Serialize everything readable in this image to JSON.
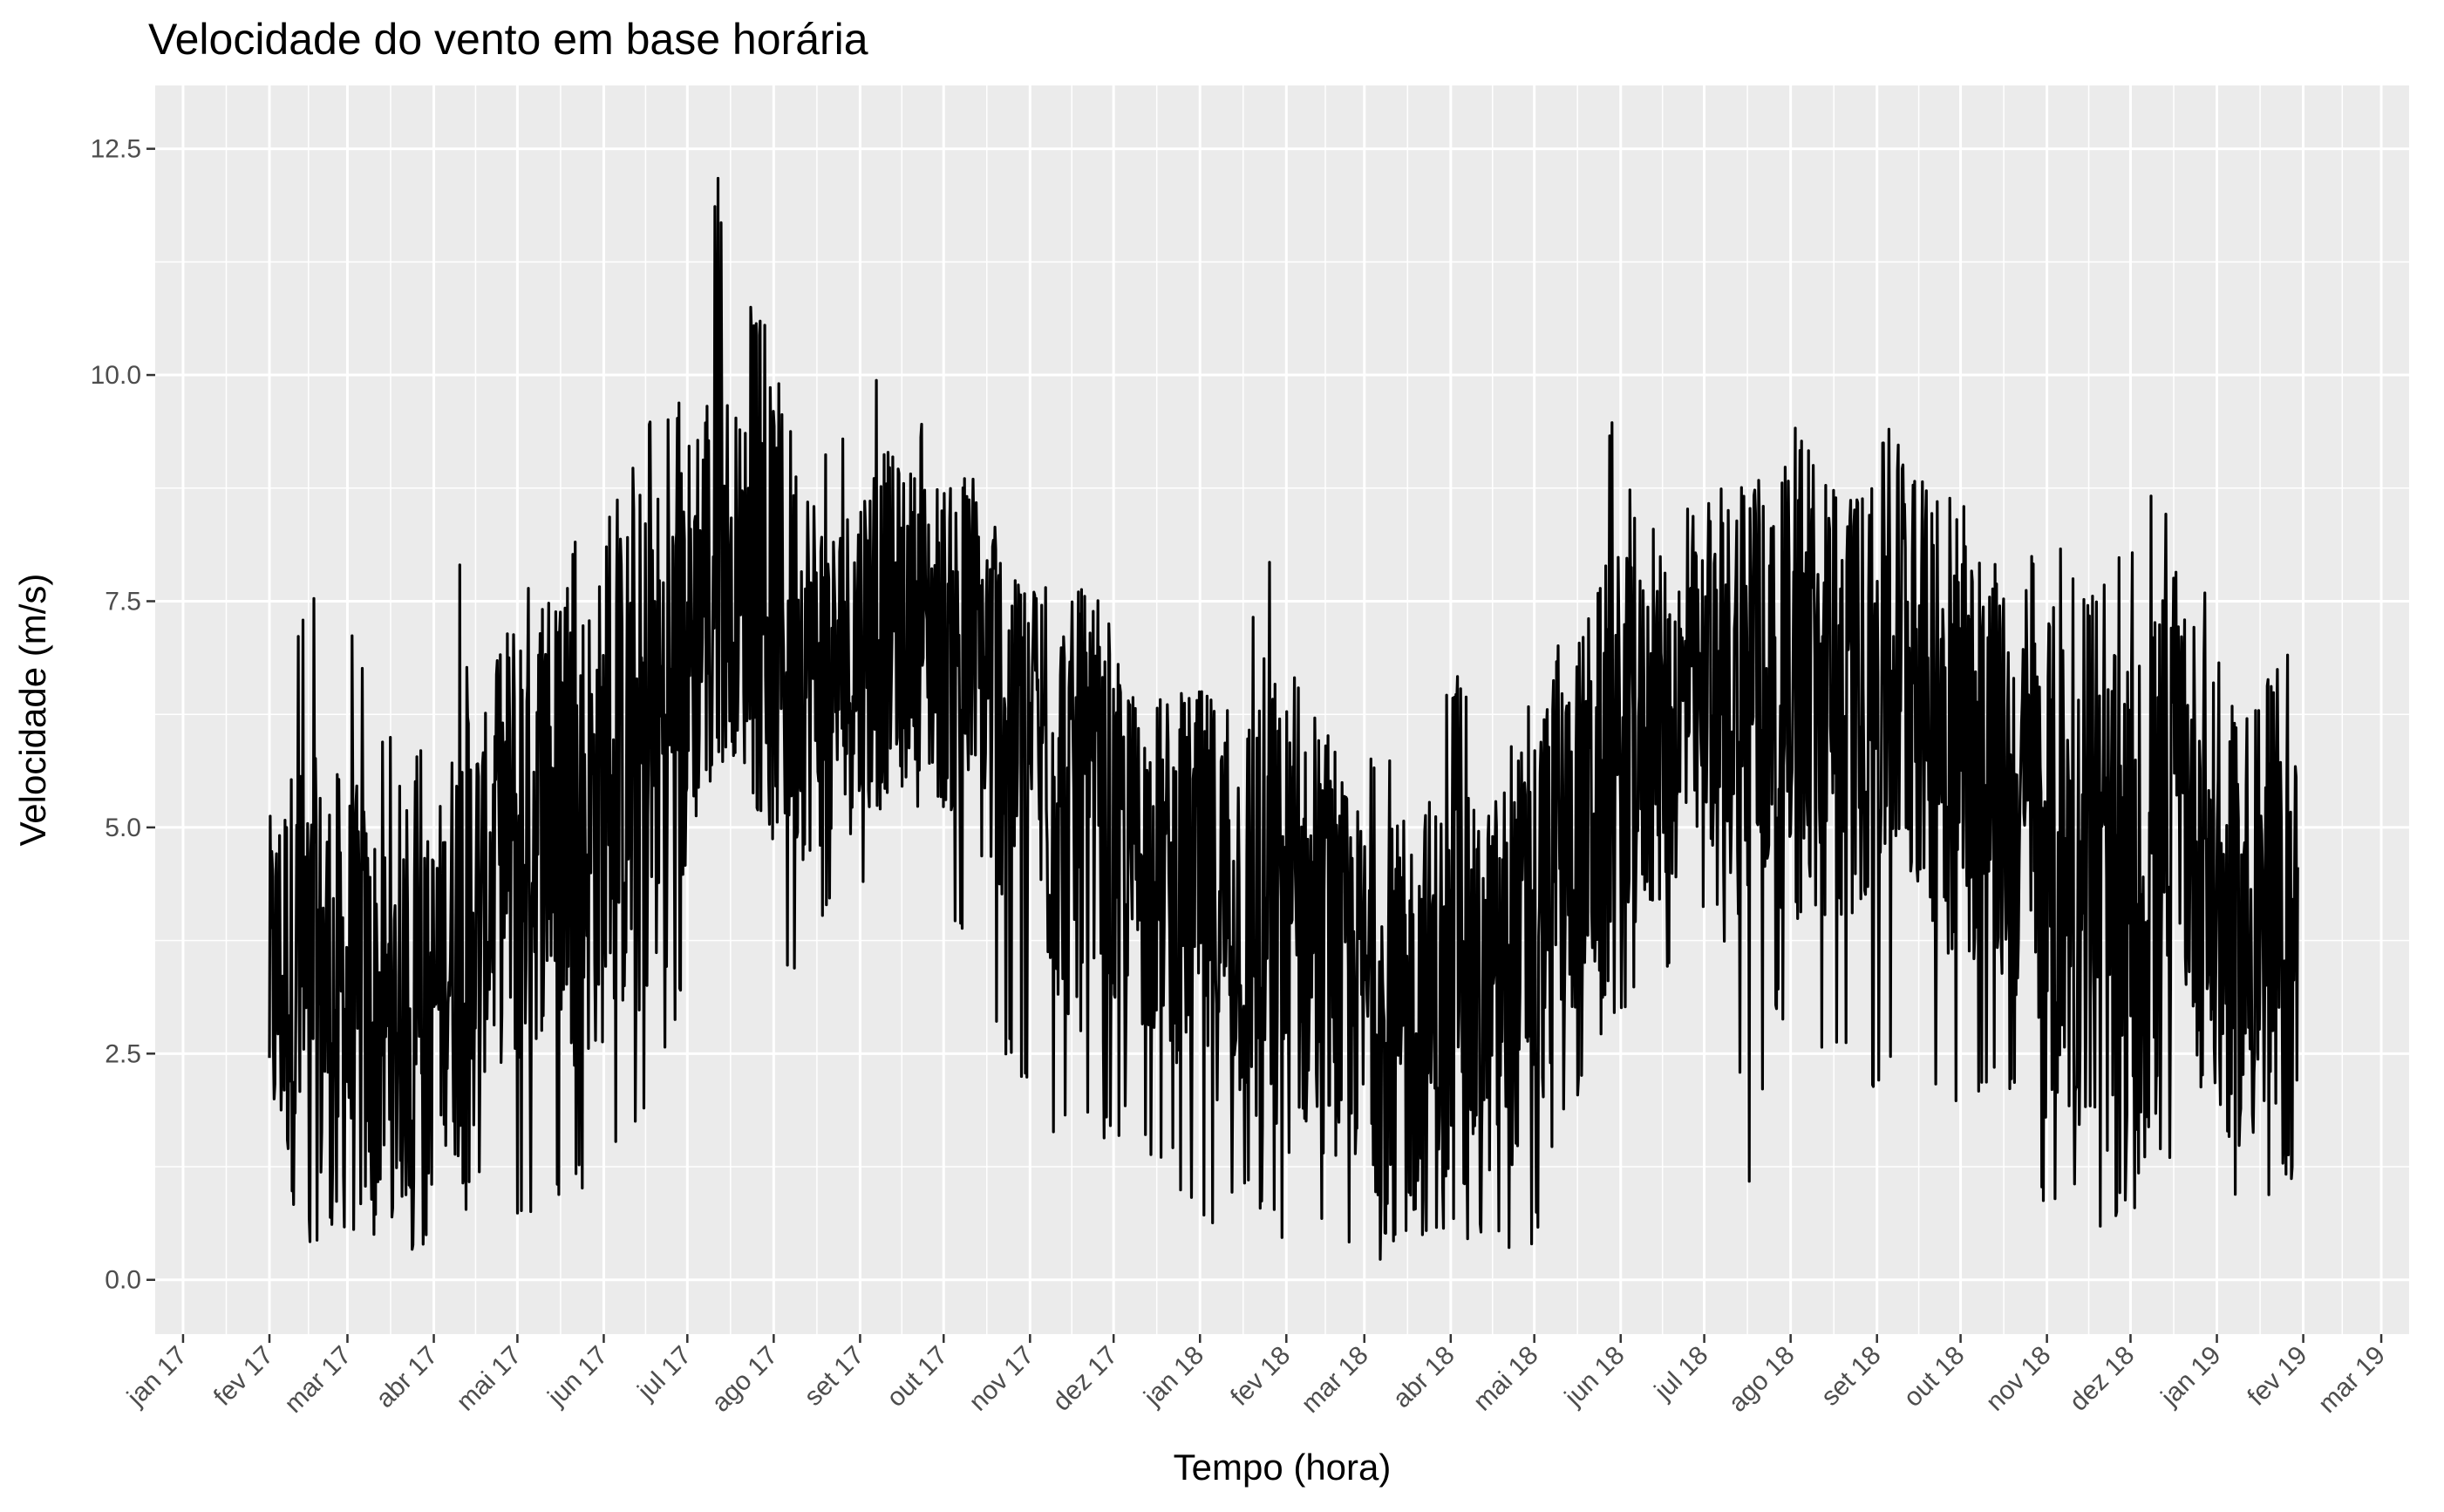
{
  "chart_data": {
    "type": "line",
    "title": "Velocidade do vento em base horária",
    "xlabel": "Tempo (hora)",
    "ylabel": "Velocidade (m/s)",
    "x_range": [
      "2016-12-22",
      "2019-03-11"
    ],
    "ylim": [
      -0.6,
      13.2
    ],
    "grid": true,
    "legend": "none",
    "line_color": "#000000",
    "background": "#ebebeb",
    "y_ticks": [
      {
        "value": 0.0,
        "label": "0.0"
      },
      {
        "value": 2.5,
        "label": "2.5"
      },
      {
        "value": 5.0,
        "label": "5.0"
      },
      {
        "value": 7.5,
        "label": "7.5"
      },
      {
        "value": 10.0,
        "label": "10.0"
      },
      {
        "value": 12.5,
        "label": "12.5"
      }
    ],
    "x_ticks": [
      {
        "date": "2017-01-01",
        "label": "jan 17"
      },
      {
        "date": "2017-02-01",
        "label": "fev 17"
      },
      {
        "date": "2017-03-01",
        "label": "mar 17"
      },
      {
        "date": "2017-04-01",
        "label": "abr 17"
      },
      {
        "date": "2017-05-01",
        "label": "mai 17"
      },
      {
        "date": "2017-06-01",
        "label": "jun 17"
      },
      {
        "date": "2017-07-01",
        "label": "jul 17"
      },
      {
        "date": "2017-08-01",
        "label": "ago 17"
      },
      {
        "date": "2017-09-01",
        "label": "set 17"
      },
      {
        "date": "2017-10-01",
        "label": "out 17"
      },
      {
        "date": "2017-11-01",
        "label": "nov 17"
      },
      {
        "date": "2017-12-01",
        "label": "dez 17"
      },
      {
        "date": "2018-01-01",
        "label": "jan 18"
      },
      {
        "date": "2018-02-01",
        "label": "fev 18"
      },
      {
        "date": "2018-03-01",
        "label": "mar 18"
      },
      {
        "date": "2018-04-01",
        "label": "abr 18"
      },
      {
        "date": "2018-05-01",
        "label": "mai 18"
      },
      {
        "date": "2018-06-01",
        "label": "jun 18"
      },
      {
        "date": "2018-07-01",
        "label": "jul 18"
      },
      {
        "date": "2018-08-01",
        "label": "ago 18"
      },
      {
        "date": "2018-09-01",
        "label": "set 18"
      },
      {
        "date": "2018-10-01",
        "label": "out 18"
      },
      {
        "date": "2018-11-01",
        "label": "nov 18"
      },
      {
        "date": "2018-12-01",
        "label": "dez 18"
      },
      {
        "date": "2019-01-01",
        "label": "jan 19"
      },
      {
        "date": "2019-02-01",
        "label": "fev 19"
      },
      {
        "date": "2019-03-01",
        "label": "mar 19"
      }
    ],
    "series": [
      {
        "data_resolution": "approximate daily low / mean / high envelope of the hourly series",
        "x": [
          "2017-02-01",
          "2017-02-08",
          "2017-02-15",
          "2017-02-22",
          "2017-03-01",
          "2017-03-08",
          "2017-03-15",
          "2017-03-22",
          "2017-03-29",
          "2017-04-05",
          "2017-04-12",
          "2017-04-19",
          "2017-04-26",
          "2017-05-03",
          "2017-05-10",
          "2017-05-17",
          "2017-05-24",
          "2017-05-31",
          "2017-06-07",
          "2017-06-14",
          "2017-06-21",
          "2017-06-28",
          "2017-07-05",
          "2017-07-12",
          "2017-07-19",
          "2017-07-26",
          "2017-08-02",
          "2017-08-09",
          "2017-08-16",
          "2017-08-23",
          "2017-08-30",
          "2017-09-06",
          "2017-09-13",
          "2017-09-20",
          "2017-09-27",
          "2017-10-04",
          "2017-10-11",
          "2017-10-18",
          "2017-10-25",
          "2017-11-01",
          "2017-11-08",
          "2017-11-15",
          "2017-11-22",
          "2017-11-29",
          "2017-12-06",
          "2017-12-13",
          "2017-12-20",
          "2017-12-27",
          "2018-01-03",
          "2018-01-10",
          "2018-01-17",
          "2018-01-24",
          "2018-01-31",
          "2018-02-07",
          "2018-02-14",
          "2018-02-21",
          "2018-02-28",
          "2018-03-07",
          "2018-03-14",
          "2018-03-21",
          "2018-03-28",
          "2018-04-04",
          "2018-04-11",
          "2018-04-18",
          "2018-04-25",
          "2018-05-02",
          "2018-05-09",
          "2018-05-16",
          "2018-05-23",
          "2018-05-30",
          "2018-06-06",
          "2018-06-13",
          "2018-06-20",
          "2018-06-27",
          "2018-07-04",
          "2018-07-11",
          "2018-07-18",
          "2018-07-25",
          "2018-08-01",
          "2018-08-08",
          "2018-08-15",
          "2018-08-22",
          "2018-08-29",
          "2018-09-05",
          "2018-09-12",
          "2018-09-19",
          "2018-09-26",
          "2018-10-03",
          "2018-10-10",
          "2018-10-17",
          "2018-10-24",
          "2018-10-31",
          "2018-11-07",
          "2018-11-14",
          "2018-11-21",
          "2018-11-28",
          "2018-12-05",
          "2018-12-12",
          "2018-12-19",
          "2018-12-26",
          "2019-01-02",
          "2019-01-09",
          "2019-01-16",
          "2019-01-23",
          "2019-01-30"
        ],
        "mean": [
          3.2,
          3.4,
          3.0,
          3.2,
          3.0,
          2.9,
          2.8,
          2.7,
          2.8,
          3.5,
          4.0,
          4.2,
          4.8,
          5.0,
          5.2,
          5.2,
          5.0,
          5.2,
          5.6,
          5.8,
          6.1,
          6.4,
          7.5,
          8.0,
          7.7,
          7.5,
          7.3,
          7.0,
          6.8,
          6.6,
          6.9,
          7.2,
          7.3,
          7.4,
          7.1,
          7.0,
          6.8,
          6.5,
          6.2,
          5.9,
          5.6,
          5.2,
          4.9,
          4.8,
          4.7,
          4.6,
          4.5,
          4.4,
          4.3,
          4.2,
          4.1,
          4.0,
          3.9,
          3.8,
          3.6,
          3.4,
          3.2,
          3.0,
          2.9,
          2.9,
          3.0,
          3.1,
          3.1,
          3.3,
          3.6,
          4.0,
          4.6,
          5.0,
          5.3,
          5.4,
          5.8,
          6.0,
          6.2,
          6.3,
          6.4,
          6.6,
          6.7,
          6.5,
          6.4,
          6.3,
          6.2,
          6.4,
          6.6,
          6.9,
          6.9,
          6.6,
          6.2,
          6.0,
          5.7,
          5.4,
          5.0,
          4.7,
          4.5,
          4.2,
          4.1,
          4.1,
          4.1,
          4.4,
          5.4,
          4.8,
          3.8,
          3.6,
          3.6,
          3.5,
          3.5
        ],
        "low": [
          1.2,
          0.5,
          0.3,
          0.6,
          0.4,
          0.3,
          0.5,
          0.2,
          0.4,
          0.6,
          0.7,
          1.0,
          0.6,
          0.5,
          1.0,
          0.8,
          1.0,
          1.1,
          1.2,
          1.5,
          2.2,
          3.0,
          4.8,
          5.8,
          5.5,
          4.6,
          3.0,
          3.4,
          3.8,
          4.1,
          4.4,
          4.4,
          5.0,
          5.4,
          4.7,
          4.0,
          3.4,
          2.6,
          2.4,
          1.8,
          1.4,
          1.5,
          1.6,
          1.4,
          1.6,
          1.4,
          1.3,
          0.8,
          0.4,
          0.6,
          0.8,
          0.6,
          0.4,
          0.5,
          0.3,
          0.2,
          0.3,
          0.2,
          0.3,
          0.2,
          0.3,
          0.3,
          0.5,
          0.3,
          0.2,
          0.4,
          1.5,
          2.0,
          2.3,
          2.4,
          3.2,
          3.0,
          3.5,
          3.8,
          4.0,
          3.0,
          0.6,
          3.0,
          2.8,
          2.6,
          2.4,
          2.2,
          2.0,
          2.3,
          2.2,
          2.0,
          1.8,
          1.7,
          2.0,
          2.1,
          2.0,
          0.8,
          0.6,
          0.8,
          0.5,
          0.6,
          0.3,
          0.2,
          2.0,
          0.8,
          0.6,
          0.7,
          0.5,
          0.6,
          0.8
        ],
        "high": [
          6.3,
          6.9,
          7.8,
          7.3,
          7.4,
          6.9,
          6.2,
          5.5,
          6.1,
          6.0,
          8.7,
          6.3,
          7.1,
          8.2,
          7.6,
          7.5,
          8.5,
          8.3,
          8.7,
          9.6,
          9.8,
          9.9,
          11.4,
          12.2,
          10.5,
          10.9,
          10.2,
          9.8,
          9.4,
          9.1,
          9.6,
          10.3,
          9.8,
          9.7,
          9.6,
          9.1,
          8.9,
          8.7,
          7.8,
          7.5,
          8.0,
          7.9,
          7.7,
          7.3,
          6.7,
          6.5,
          6.6,
          6.5,
          6.5,
          6.6,
          6.9,
          8.6,
          7.5,
          6.5,
          6.2,
          5.9,
          5.7,
          5.9,
          6.0,
          6.8,
          6.9,
          6.7,
          6.0,
          6.2,
          6.3,
          6.8,
          7.1,
          7.6,
          8.5,
          9.8,
          8.7,
          8.3,
          8.5,
          8.7,
          8.6,
          9.3,
          8.8,
          8.9,
          9.5,
          9.2,
          9.0,
          8.7,
          8.6,
          9.5,
          9.2,
          8.7,
          8.9,
          8.5,
          8.0,
          8.0,
          7.7,
          8.6,
          8.2,
          7.5,
          8.0,
          8.1,
          8.2,
          9.2,
          7.4,
          7.9,
          7.0,
          6.4,
          6.5,
          6.9,
          7.7
        ]
      }
    ]
  }
}
